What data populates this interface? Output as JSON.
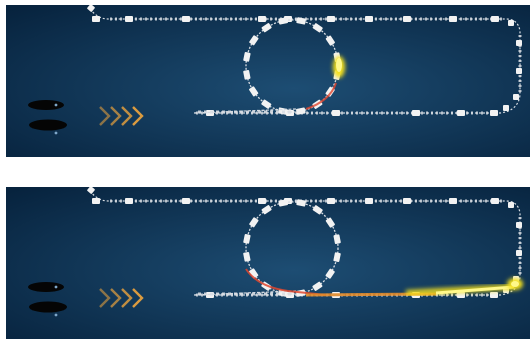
{
  "figure": {
    "panels": [
      {
        "id": "top",
        "stage": "circulating",
        "beam_in_ring": true,
        "extracted": false
      },
      {
        "id": "bottom",
        "stage": "extracted",
        "beam_in_ring": true,
        "extracted": true
      }
    ],
    "colors": {
      "background_center": "#1d4d73",
      "background_edge": "#07233e",
      "beamline": "#d8dde3",
      "magnet": "#f2f2f2",
      "beam_core": "#fff88a",
      "beam_glow": "#f5e11e",
      "beam_trail": "#e0462e",
      "chevron": "#f0a53c",
      "source": "#050505"
    },
    "injector_arrow_chevrons": 4,
    "icons": [
      "ion-source-icon",
      "injection-arrow-icon",
      "extracted-beam-icon"
    ]
  }
}
